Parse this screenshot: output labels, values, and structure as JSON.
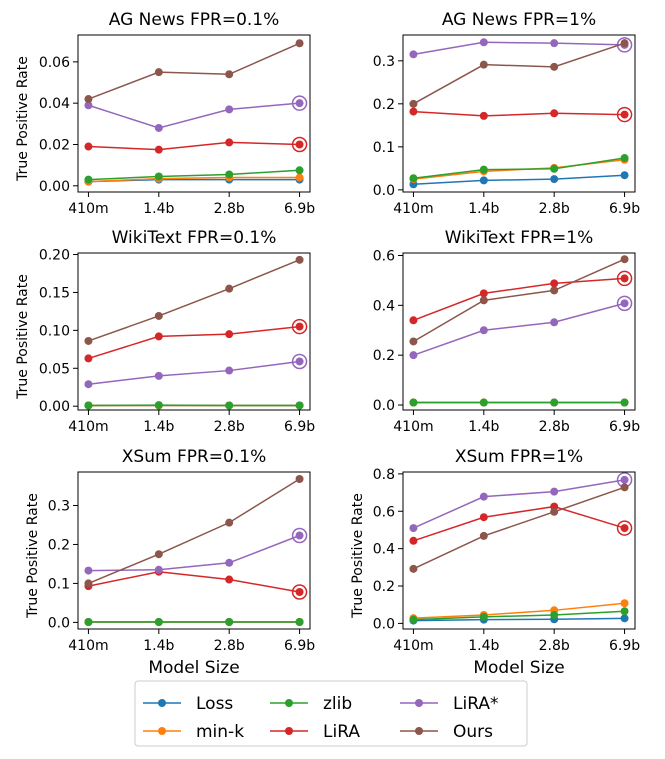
{
  "legend": {
    "items": [
      {
        "label": "Loss",
        "color": "#1f77b4"
      },
      {
        "label": "min-k",
        "color": "#ff7f0e"
      },
      {
        "label": "zlib",
        "color": "#2ca02c"
      },
      {
        "label": "LiRA",
        "color": "#d62728"
      },
      {
        "label": "LiRA*",
        "color": "#9467bd"
      },
      {
        "label": "Ours",
        "color": "#8c564b"
      }
    ]
  },
  "chart_data": [
    {
      "type": "line",
      "title": "AG News FPR=0.1%",
      "xlabel": "",
      "ylabel": "True Positive Rate",
      "categories": [
        "410m",
        "1.4b",
        "2.8b",
        "6.9b"
      ],
      "ylim": [
        -0.003,
        0.073
      ],
      "yticks": [
        0.0,
        0.02,
        0.04,
        0.06
      ],
      "yticklabels": [
        "0.00",
        "0.02",
        "0.04",
        "0.06"
      ],
      "series": [
        {
          "name": "Loss",
          "color": "#1f77b4",
          "values": [
            0.002,
            0.003,
            0.003,
            0.003
          ]
        },
        {
          "name": "min-k",
          "color": "#ff7f0e",
          "values": [
            0.002,
            0.0035,
            0.004,
            0.004
          ]
        },
        {
          "name": "zlib",
          "color": "#2ca02c",
          "values": [
            0.003,
            0.0045,
            0.0055,
            0.0075
          ]
        },
        {
          "name": "LiRA",
          "color": "#d62728",
          "values": [
            0.019,
            0.0175,
            0.021,
            0.02
          ],
          "ring": true
        },
        {
          "name": "LiRA*",
          "color": "#9467bd",
          "values": [
            0.039,
            0.028,
            0.037,
            0.04
          ],
          "ring": true
        },
        {
          "name": "Ours",
          "color": "#8c564b",
          "values": [
            0.042,
            0.055,
            0.054,
            0.069
          ]
        }
      ]
    },
    {
      "type": "line",
      "title": "AG News FPR=1%",
      "xlabel": "",
      "ylabel": "",
      "categories": [
        "410m",
        "1.4b",
        "2.8b",
        "6.9b"
      ],
      "ylim": [
        -0.005,
        0.36
      ],
      "yticks": [
        0.0,
        0.1,
        0.2,
        0.3
      ],
      "yticklabels": [
        "0.0",
        "0.1",
        "0.2",
        "0.3"
      ],
      "series": [
        {
          "name": "Loss",
          "color": "#1f77b4",
          "values": [
            0.013,
            0.022,
            0.025,
            0.034
          ]
        },
        {
          "name": "min-k",
          "color": "#ff7f0e",
          "values": [
            0.025,
            0.043,
            0.051,
            0.07
          ]
        },
        {
          "name": "zlib",
          "color": "#2ca02c",
          "values": [
            0.027,
            0.047,
            0.049,
            0.074
          ]
        },
        {
          "name": "LiRA",
          "color": "#d62728",
          "values": [
            0.182,
            0.172,
            0.178,
            0.175
          ],
          "ring": true
        },
        {
          "name": "LiRA*",
          "color": "#9467bd",
          "values": [
            0.315,
            0.343,
            0.341,
            0.337
          ],
          "ring": true
        },
        {
          "name": "Ours",
          "color": "#8c564b",
          "values": [
            0.2,
            0.291,
            0.286,
            0.341
          ]
        }
      ]
    },
    {
      "type": "line",
      "title": "WikiText FPR=0.1%",
      "xlabel": "",
      "ylabel": "True Positive Rate",
      "categories": [
        "410m",
        "1.4b",
        "2.8b",
        "6.9b"
      ],
      "ylim": [
        -0.005,
        0.202
      ],
      "yticks": [
        0.0,
        0.05,
        0.1,
        0.15,
        0.2
      ],
      "yticklabels": [
        "0.00",
        "0.05",
        "0.10",
        "0.15",
        "0.20"
      ],
      "series": [
        {
          "name": "Loss",
          "color": "#1f77b4",
          "values": [
            0.001,
            0.001,
            0.001,
            0.001
          ]
        },
        {
          "name": "min-k",
          "color": "#ff7f0e",
          "values": [
            0.001,
            0.001,
            0.001,
            0.001
          ]
        },
        {
          "name": "zlib",
          "color": "#2ca02c",
          "values": [
            0.001,
            0.0015,
            0.001,
            0.001
          ]
        },
        {
          "name": "LiRA",
          "color": "#d62728",
          "values": [
            0.063,
            0.092,
            0.095,
            0.105
          ],
          "ring": true
        },
        {
          "name": "LiRA*",
          "color": "#9467bd",
          "values": [
            0.029,
            0.04,
            0.047,
            0.059
          ],
          "ring": true
        },
        {
          "name": "Ours",
          "color": "#8c564b",
          "values": [
            0.086,
            0.119,
            0.155,
            0.193
          ]
        }
      ]
    },
    {
      "type": "line",
      "title": "WikiText FPR=1%",
      "xlabel": "",
      "ylabel": "",
      "categories": [
        "410m",
        "1.4b",
        "2.8b",
        "6.9b"
      ],
      "ylim": [
        -0.02,
        0.61
      ],
      "yticks": [
        0.0,
        0.2,
        0.4,
        0.6
      ],
      "yticklabels": [
        "0.0",
        "0.2",
        "0.4",
        "0.6"
      ],
      "series": [
        {
          "name": "Loss",
          "color": "#1f77b4",
          "values": [
            0.01,
            0.01,
            0.01,
            0.01
          ]
        },
        {
          "name": "min-k",
          "color": "#ff7f0e",
          "values": [
            0.01,
            0.01,
            0.01,
            0.01
          ]
        },
        {
          "name": "zlib",
          "color": "#2ca02c",
          "values": [
            0.01,
            0.01,
            0.01,
            0.01
          ]
        },
        {
          "name": "LiRA",
          "color": "#d62728",
          "values": [
            0.34,
            0.448,
            0.488,
            0.508
          ],
          "ring": true
        },
        {
          "name": "LiRA*",
          "color": "#9467bd",
          "values": [
            0.2,
            0.3,
            0.332,
            0.408
          ],
          "ring": true
        },
        {
          "name": "Ours",
          "color": "#8c564b",
          "values": [
            0.255,
            0.42,
            0.46,
            0.585
          ]
        }
      ]
    },
    {
      "type": "line",
      "title": "XSum FPR=0.1%",
      "xlabel": "Model Size",
      "ylabel": "True Positive Rate",
      "categories": [
        "410m",
        "1.4b",
        "2.8b",
        "6.9b"
      ],
      "ylim": [
        -0.017,
        0.386
      ],
      "yticks": [
        0.0,
        0.1,
        0.2,
        0.3
      ],
      "yticklabels": [
        "0.0",
        "0.1",
        "0.2",
        "0.3"
      ],
      "series": [
        {
          "name": "Loss",
          "color": "#1f77b4",
          "values": [
            0.001,
            0.001,
            0.001,
            0.001
          ]
        },
        {
          "name": "min-k",
          "color": "#ff7f0e",
          "values": [
            0.001,
            0.001,
            0.001,
            0.001
          ]
        },
        {
          "name": "zlib",
          "color": "#2ca02c",
          "values": [
            0.001,
            0.001,
            0.001,
            0.001
          ]
        },
        {
          "name": "LiRA",
          "color": "#d62728",
          "values": [
            0.093,
            0.13,
            0.11,
            0.078
          ],
          "ring": true
        },
        {
          "name": "LiRA*",
          "color": "#9467bd",
          "values": [
            0.133,
            0.135,
            0.153,
            0.223
          ],
          "ring": true
        },
        {
          "name": "Ours",
          "color": "#8c564b",
          "values": [
            0.1,
            0.175,
            0.256,
            0.368
          ]
        }
      ]
    },
    {
      "type": "line",
      "title": "XSum FPR=1%",
      "xlabel": "Model Size",
      "ylabel": "True Positive Rate",
      "categories": [
        "410m",
        "1.4b",
        "2.8b",
        "6.9b"
      ],
      "ylim": [
        -0.03,
        0.81
      ],
      "yticks": [
        0.0,
        0.2,
        0.4,
        0.6,
        0.8
      ],
      "yticklabels": [
        "0.0",
        "0.2",
        "0.4",
        "0.6",
        "0.8"
      ],
      "series": [
        {
          "name": "Loss",
          "color": "#1f77b4",
          "values": [
            0.015,
            0.02,
            0.022,
            0.027
          ]
        },
        {
          "name": "min-k",
          "color": "#ff7f0e",
          "values": [
            0.028,
            0.045,
            0.07,
            0.108
          ]
        },
        {
          "name": "zlib",
          "color": "#2ca02c",
          "values": [
            0.02,
            0.035,
            0.045,
            0.065
          ]
        },
        {
          "name": "LiRA",
          "color": "#d62728",
          "values": [
            0.442,
            0.568,
            0.625,
            0.51
          ],
          "ring": true
        },
        {
          "name": "LiRA*",
          "color": "#9467bd",
          "values": [
            0.51,
            0.678,
            0.705,
            0.768
          ],
          "ring": true
        },
        {
          "name": "Ours",
          "color": "#8c564b",
          "values": [
            0.292,
            0.468,
            0.597,
            0.728
          ]
        }
      ]
    }
  ]
}
